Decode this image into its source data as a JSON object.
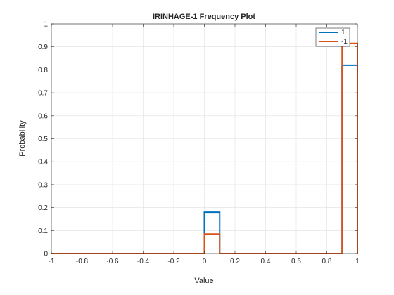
{
  "chart_data": {
    "type": "line",
    "style": "stairs-histogram",
    "title": "IRINHAGE-1 Frequency Plot",
    "xlabel": "Value",
    "ylabel": "Probability",
    "xlim": [
      -1,
      1
    ],
    "ylim": [
      0,
      1
    ],
    "grid": true,
    "legend_position": "top-right",
    "x_ticks": [
      -1,
      -0.8,
      -0.6,
      -0.4,
      -0.2,
      0,
      0.2,
      0.4,
      0.6,
      0.8,
      1
    ],
    "x_tick_labels": [
      "-1",
      "-0.8",
      "-0.6",
      "-0.4",
      "-0.2",
      "0",
      "0.2",
      "0.4",
      "0.6",
      "0.8",
      "1"
    ],
    "y_ticks": [
      0,
      0.1,
      0.2,
      0.3,
      0.4,
      0.5,
      0.6,
      0.7,
      0.8,
      0.9,
      1
    ],
    "y_tick_labels": [
      "0",
      "0.1",
      "0.2",
      "0.3",
      "0.4",
      "0.5",
      "0.6",
      "0.7",
      "0.8",
      "0.9",
      "1"
    ],
    "series": [
      {
        "name": "1",
        "color": "#0072BD",
        "x": [
          -1,
          0,
          0,
          0.1,
          0.1,
          0.9,
          0.9,
          1,
          1
        ],
        "y": [
          0,
          0,
          0.18,
          0.18,
          0,
          0,
          0.82,
          0.82,
          0
        ]
      },
      {
        "name": "-1",
        "color": "#D95319",
        "x": [
          -1,
          0,
          0,
          0.1,
          0.1,
          0.9,
          0.9,
          1,
          1
        ],
        "y": [
          0,
          0,
          0.085,
          0.085,
          0,
          0,
          0.915,
          0.915,
          0
        ]
      }
    ]
  }
}
